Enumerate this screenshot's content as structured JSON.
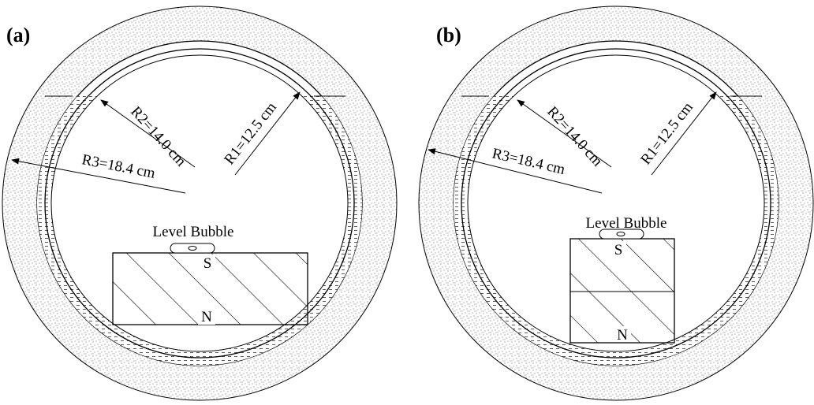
{
  "panels": [
    {
      "label": "(a)",
      "r1": "R1=12.5 cm",
      "r2": "R2=14.0 cm",
      "r3": "R3=18.4 cm",
      "bubble": "Level Bubble",
      "south": "S",
      "north": "N"
    },
    {
      "label": "(b)",
      "r1": "R1=12.5 cm",
      "r2": "R2=14.0 cm",
      "r3": "R3=18.4 cm",
      "bubble": "Level Bubble",
      "south": "S",
      "north": "N"
    }
  ]
}
